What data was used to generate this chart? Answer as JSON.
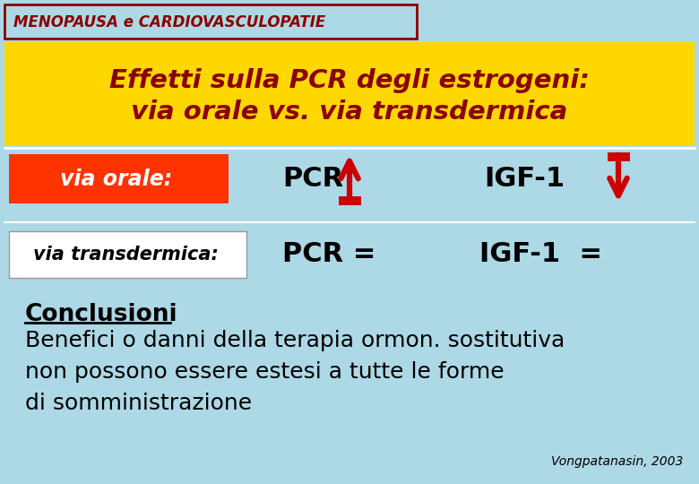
{
  "bg_color": "#ADD8E6",
  "header_bg_color": "#FFD700",
  "header_text_line1": "Effetti sulla PCR degli estrogeni:",
  "header_text_line2": "via orale vs. via transdermica",
  "header_text_color": "#8B0000",
  "top_label_text": "MENOPAUSA e CARDIOVASCULOPATIE",
  "top_label_color": "#8B0000",
  "top_label_border": "#8B0000",
  "via_orale_bg": "#FF3300",
  "via_orale_text": "via orale:",
  "via_orale_text_color": "#FFFFFF",
  "via_transdermica_bg": "#FFFFFF",
  "via_transdermica_text": "via transdermica:",
  "via_transdermica_text_color": "#000000",
  "pcr_orale": "PCR",
  "pcr_trans": "PCR =",
  "igf_orale": "IGF-1",
  "igf_trans": "IGF-1  =",
  "arrow_color": "#CC0000",
  "text_color_dark": "#000000",
  "conclusioni_text": "Conclusioni",
  "body_text_line1": "Benefici o danni della terapia ormon. sostitutiva",
  "body_text_line2": "non possono essere estesi a tutte le forme",
  "body_text_line3": "di somministrazione",
  "citation": "Vongpatanasin, 2003",
  "body_text_color": "#000000"
}
